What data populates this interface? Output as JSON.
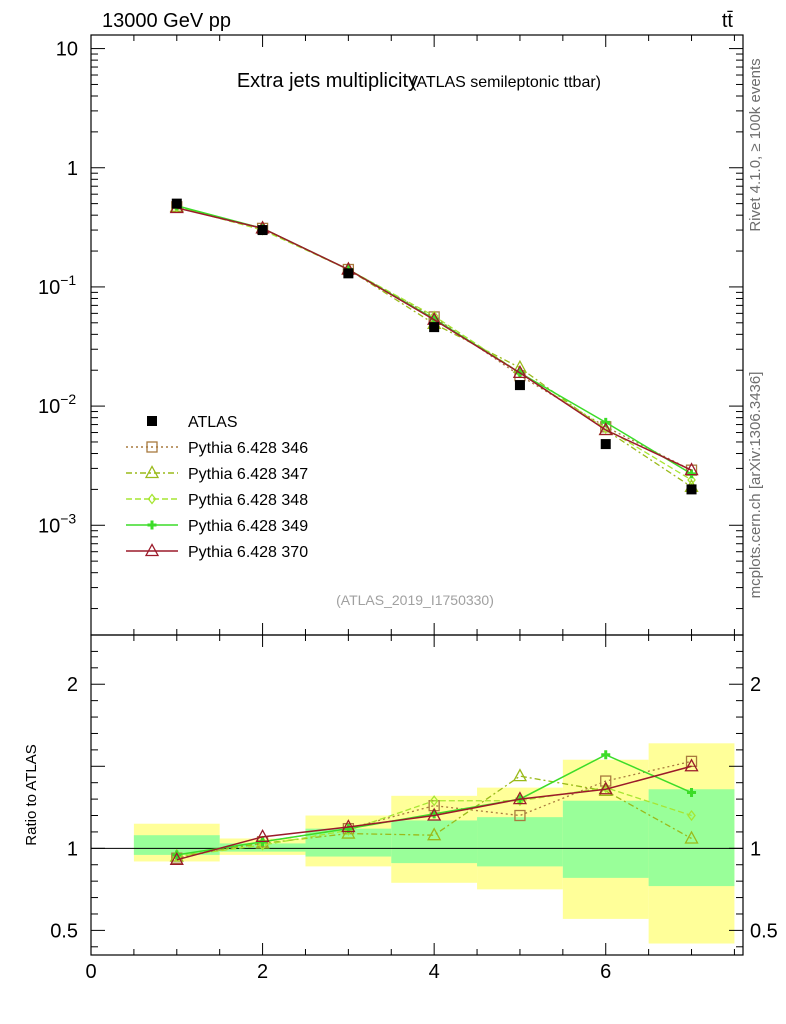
{
  "header": {
    "left": "13000 GeV pp",
    "right": "tt̄"
  },
  "side_labels": {
    "rivet": "Rivet 4.1.0, ≥ 100k events",
    "mcplots": "mcplots.cern.ch [arXiv:1306.3436]"
  },
  "chart_data": {
    "type": "line",
    "title": "Extra jets multiplicity",
    "subtitle": "(ATLAS semileptonic ttbar)",
    "watermark": "(ATLAS_2019_I1750330)",
    "xlabel": "",
    "xlim": [
      0,
      7.6
    ],
    "x_ticks": [
      0,
      2,
      4,
      6
    ],
    "main": {
      "yscale": "log",
      "ylim": [
        0.00012,
        13
      ],
      "y_ticks": [
        {
          "value": 10,
          "label": "10"
        },
        {
          "value": 1,
          "label": "1"
        },
        {
          "value": 0.1,
          "label": "10^-1",
          "base": "10",
          "exp": "−1"
        },
        {
          "value": 0.01,
          "label": "10^-2",
          "base": "10",
          "exp": "−2"
        },
        {
          "value": 0.001,
          "label": "10^-3",
          "base": "10",
          "exp": "−3"
        }
      ]
    },
    "ratio": {
      "ylabel": "Ratio to ATLAS",
      "ylim": [
        0.35,
        2.3
      ],
      "y_ticks": [
        0.5,
        1,
        2
      ],
      "y_tick_labels": [
        "0.5",
        "1",
        "2"
      ],
      "band_inner": [
        {
          "x0": 0.5,
          "x1": 1.5,
          "lo": 0.96,
          "hi": 1.08
        },
        {
          "x0": 1.5,
          "x1": 2.5,
          "lo": 0.98,
          "hi": 1.03
        },
        {
          "x0": 2.5,
          "x1": 3.5,
          "lo": 0.95,
          "hi": 1.12
        },
        {
          "x0": 3.5,
          "x1": 4.5,
          "lo": 0.91,
          "hi": 1.17
        },
        {
          "x0": 4.5,
          "x1": 5.5,
          "lo": 0.89,
          "hi": 1.19
        },
        {
          "x0": 5.5,
          "x1": 6.5,
          "lo": 0.82,
          "hi": 1.29
        },
        {
          "x0": 6.5,
          "x1": 7.5,
          "lo": 0.77,
          "hi": 1.36
        }
      ],
      "band_outer": [
        {
          "x0": 0.5,
          "x1": 1.5,
          "lo": 0.92,
          "hi": 1.15
        },
        {
          "x0": 1.5,
          "x1": 2.5,
          "lo": 0.96,
          "hi": 1.06
        },
        {
          "x0": 2.5,
          "x1": 3.5,
          "lo": 0.89,
          "hi": 1.2
        },
        {
          "x0": 3.5,
          "x1": 4.5,
          "lo": 0.79,
          "hi": 1.32
        },
        {
          "x0": 4.5,
          "x1": 5.5,
          "lo": 0.75,
          "hi": 1.37
        },
        {
          "x0": 5.5,
          "x1": 6.5,
          "lo": 0.57,
          "hi": 1.54
        },
        {
          "x0": 6.5,
          "x1": 7.5,
          "lo": 0.42,
          "hi": 1.64
        }
      ]
    },
    "x": [
      1,
      2,
      3,
      4,
      5,
      6,
      7
    ],
    "series": [
      {
        "name": "ATLAS",
        "color": "#000000",
        "marker": "square-filled",
        "dash": "none",
        "values": [
          0.5,
          0.3,
          0.13,
          0.046,
          0.015,
          0.0048,
          0.002
        ],
        "ratio": [
          1,
          1,
          1,
          1,
          1,
          1,
          1
        ]
      },
      {
        "name": "Pythia 6.428 346",
        "color": "#a87a3e",
        "marker": "square-open",
        "dash": "2,3",
        "values": [
          0.47,
          0.31,
          0.14,
          0.056,
          0.018,
          0.0067,
          0.0029
        ],
        "ratio": [
          0.94,
          1.04,
          1.12,
          1.26,
          1.2,
          1.41,
          1.53
        ]
      },
      {
        "name": "Pythia 6.428 347",
        "color": "#9aba1a",
        "marker": "triangle-open",
        "dash": "6,3,2,3",
        "values": [
          0.47,
          0.31,
          0.14,
          0.049,
          0.021,
          0.0063,
          0.0021
        ],
        "ratio": [
          0.95,
          1.03,
          1.09,
          1.08,
          1.44,
          1.35,
          1.06
        ]
      },
      {
        "name": "Pythia 6.428 348",
        "color": "#a6e632",
        "marker": "diamond-open",
        "dash": "6,3",
        "values": [
          0.47,
          0.3,
          0.14,
          0.057,
          0.019,
          0.0065,
          0.0024
        ],
        "ratio": [
          0.95,
          1.02,
          1.11,
          1.29,
          1.29,
          1.37,
          1.2
        ]
      },
      {
        "name": "Pythia 6.428 349",
        "color": "#3cdc28",
        "marker": "plus",
        "dash": "none",
        "values": [
          0.48,
          0.31,
          0.14,
          0.054,
          0.019,
          0.0073,
          0.0027
        ],
        "ratio": [
          0.96,
          1.04,
          1.12,
          1.21,
          1.3,
          1.57,
          1.34
        ]
      },
      {
        "name": "Pythia 6.428 370",
        "color": "#9b1a2a",
        "marker": "triangle-open",
        "dash": "none",
        "values": [
          0.46,
          0.31,
          0.14,
          0.053,
          0.019,
          0.0063,
          0.0029
        ],
        "ratio": [
          0.93,
          1.07,
          1.13,
          1.2,
          1.3,
          1.36,
          1.5
        ]
      }
    ]
  }
}
